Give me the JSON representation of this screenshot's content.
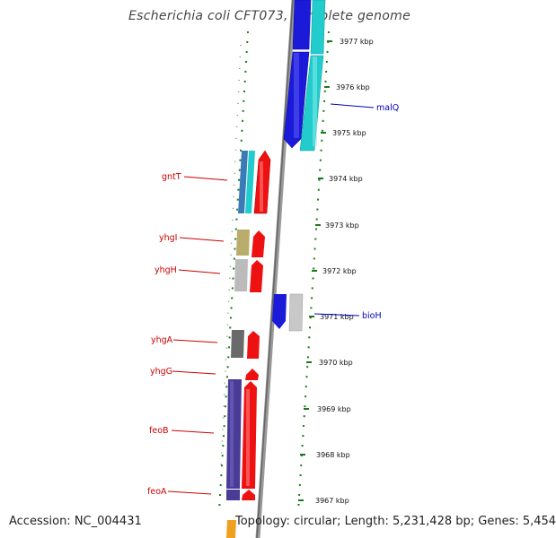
{
  "title": "Escherichia coli CFT073, complete genome",
  "footer": {
    "accession": "Accession: NC_004431",
    "summary": "Topology: circular; Length: 5,231,428 bp; Genes: 5,454"
  },
  "colors": {
    "forward_cds": "#ee0000",
    "reverse_cds": "#0000ee",
    "forward_label": "#cc0000",
    "reverse_label": "#0000bb",
    "backbone": "#888888",
    "tick": "#1a7a1a"
  },
  "scale": {
    "unit": "kbp",
    "labels": [
      "3977 kbp",
      "3976 kbp",
      "3975 kbp",
      "3974 kbp",
      "3973 kbp",
      "3972 kbp",
      "3971 kbp",
      "3970 kbp",
      "3969 kbp",
      "3968 kbp",
      "3967 kbp"
    ]
  },
  "gene_labels": {
    "forward": [
      "gntT",
      "yhgI",
      "yhgH",
      "yhgA",
      "yhgG",
      "feoB",
      "feoA"
    ],
    "reverse": [
      "malQ",
      "bioH"
    ]
  }
}
